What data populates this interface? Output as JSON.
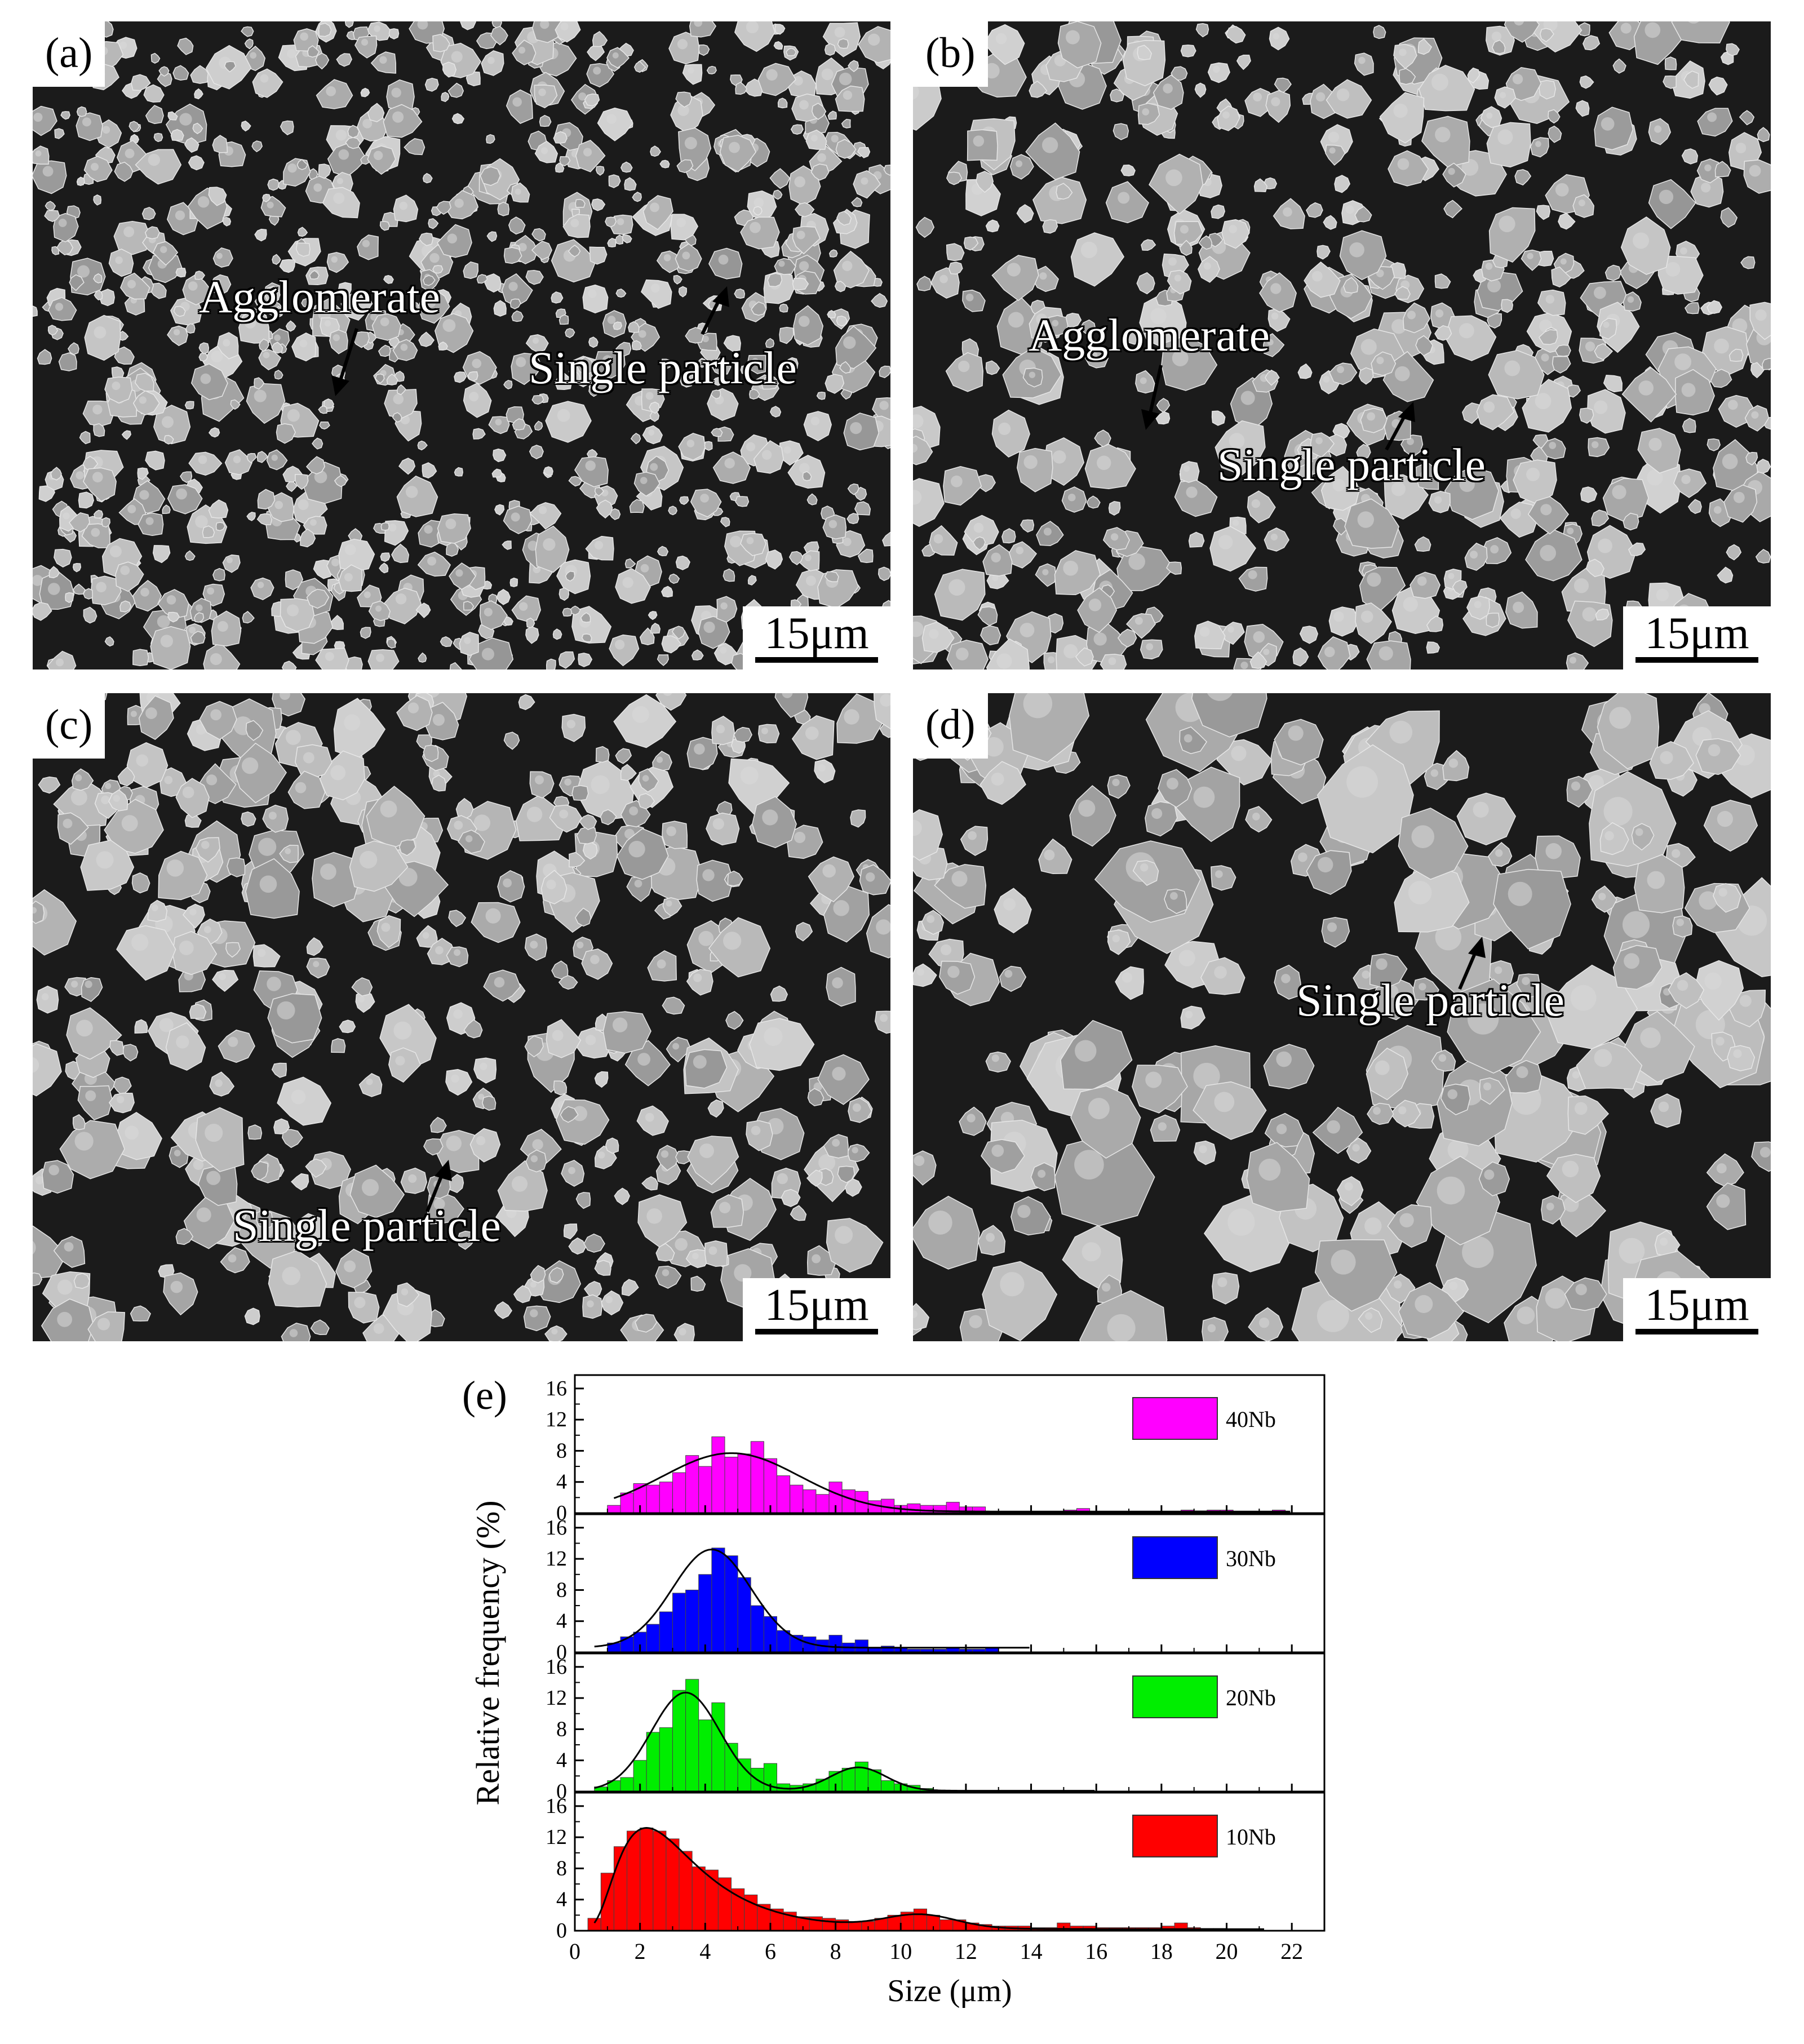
{
  "panels": [
    {
      "label": "(a)",
      "scale": "15μm",
      "annotations": [
        "Agglomerate",
        "Single particle"
      ]
    },
    {
      "label": "(b)",
      "scale": "15μm",
      "annotations": [
        "Agglomerate",
        "Single particle"
      ]
    },
    {
      "label": "(c)",
      "scale": "15μm",
      "annotations": [
        "Single particle"
      ]
    },
    {
      "label": "(d)",
      "scale": "15μm",
      "annotations": [
        "Single particle"
      ]
    }
  ],
  "chart_data": {
    "label": "(e)",
    "type": "bar",
    "xlabel": "Size (μm)",
    "ylabel": "Relative frequency (%)",
    "xlim": [
      0,
      23
    ],
    "ylim": [
      0,
      17
    ],
    "x_ticks": [
      0,
      2,
      4,
      6,
      8,
      10,
      12,
      14,
      16,
      18,
      20,
      22
    ],
    "y_ticks": [
      0,
      4,
      8,
      12,
      16
    ],
    "y_minor_ticks": [
      2,
      6,
      10,
      14
    ],
    "bin_width": 0.4,
    "colors": {
      "40Nb": "#ff00ff",
      "30Nb": "#0000ff",
      "20Nb": "#00ee00",
      "10Nb": "#ff0000"
    },
    "series": [
      {
        "name": "40Nb",
        "x": [
          1.2,
          1.6,
          2.0,
          2.4,
          2.8,
          3.2,
          3.6,
          4.0,
          4.4,
          4.8,
          5.2,
          5.6,
          6.0,
          6.4,
          6.8,
          7.2,
          7.6,
          8.0,
          8.4,
          8.8,
          9.2,
          9.6,
          10.0,
          10.4,
          10.8,
          11.2,
          11.6,
          12.0,
          12.4,
          15.2,
          15.6,
          18.8,
          19.2,
          19.6,
          20.0,
          21.6
        ],
        "y": [
          1.0,
          2.6,
          3.8,
          3.6,
          4.0,
          5.2,
          7.4,
          6.0,
          9.8,
          7.2,
          7.6,
          9.2,
          7.0,
          4.8,
          3.6,
          3.0,
          2.4,
          4.0,
          3.0,
          2.8,
          1.6,
          1.8,
          1.0,
          1.2,
          1.0,
          1.0,
          1.4,
          0.8,
          0.8,
          0.4,
          0.6,
          0.4,
          0.3,
          0.4,
          0.4,
          0.4
        ],
        "fit": {
          "type": "gaussian",
          "center": 4.8,
          "sigma": 2.1,
          "peak": 7.5,
          "baseline": 0.2,
          "range": [
            1.2,
            22.0
          ]
        }
      },
      {
        "name": "30Nb",
        "x": [
          1.2,
          1.6,
          2.0,
          2.4,
          2.8,
          3.2,
          3.6,
          4.0,
          4.4,
          4.8,
          5.2,
          5.6,
          6.0,
          6.4,
          6.8,
          7.2,
          7.6,
          8.0,
          8.4,
          8.8,
          9.2,
          9.6,
          10.0,
          10.4,
          10.8,
          11.2,
          11.6,
          12.0,
          12.4,
          12.8
        ],
        "y": [
          1.2,
          2.0,
          2.6,
          3.6,
          5.2,
          7.6,
          8.0,
          10.0,
          13.4,
          12.4,
          9.6,
          6.0,
          4.6,
          2.8,
          2.2,
          2.0,
          1.6,
          2.2,
          1.2,
          1.6,
          0.6,
          0.8,
          0.6,
          0.4,
          0.4,
          0.4,
          0.6,
          0.4,
          0.4,
          0.6
        ],
        "fit": {
          "type": "gaussian",
          "center": 4.2,
          "sigma": 1.2,
          "peak": 12.6,
          "baseline": 0.6,
          "range": [
            0.6,
            14.0
          ]
        }
      },
      {
        "name": "20Nb",
        "x": [
          0.8,
          1.2,
          1.6,
          2.0,
          2.4,
          2.8,
          3.2,
          3.6,
          4.0,
          4.4,
          4.8,
          5.2,
          5.6,
          6.0,
          6.4,
          6.8,
          7.2,
          7.6,
          8.0,
          8.4,
          8.8,
          9.2,
          9.6,
          10.0,
          10.4,
          10.8
        ],
        "y": [
          0.6,
          1.4,
          1.8,
          4.0,
          7.6,
          8.2,
          13.0,
          14.4,
          9.2,
          11.4,
          6.2,
          4.2,
          3.0,
          3.6,
          1.0,
          0.8,
          1.0,
          1.6,
          2.6,
          3.0,
          3.8,
          2.8,
          1.4,
          1.0,
          0.8,
          0.4
        ],
        "fit": {
          "type": "bimodal",
          "center": 3.4,
          "sigma": 1.05,
          "peak": 12.6,
          "center2": 8.7,
          "sigma2": 0.85,
          "peak2": 3.0,
          "baseline": 0.1,
          "range": [
            0.6,
            16.0
          ]
        }
      },
      {
        "name": "10Nb",
        "x": [
          0.6,
          1.0,
          1.4,
          1.8,
          2.2,
          2.6,
          3.0,
          3.4,
          3.8,
          4.2,
          4.6,
          5.0,
          5.4,
          5.8,
          6.2,
          6.6,
          7.0,
          7.4,
          7.8,
          8.2,
          8.6,
          9.0,
          9.4,
          9.8,
          10.2,
          10.6,
          11.0,
          11.4,
          11.8,
          12.2,
          12.6,
          13.0,
          13.4,
          13.8,
          14.2,
          14.6,
          15.0,
          15.4,
          15.8,
          16.2,
          16.6,
          17.0,
          17.4,
          17.8,
          18.2,
          18.6,
          19.0,
          19.4,
          19.8
        ],
        "y": [
          1.6,
          7.4,
          10.8,
          12.8,
          13.2,
          12.8,
          11.8,
          10.2,
          8.2,
          7.8,
          6.8,
          5.4,
          4.6,
          3.4,
          2.8,
          2.4,
          1.8,
          1.8,
          1.6,
          1.4,
          1.2,
          1.2,
          1.6,
          2.0,
          2.4,
          2.8,
          2.0,
          1.4,
          1.4,
          1.0,
          0.8,
          0.6,
          0.6,
          0.6,
          0.4,
          0.4,
          1.0,
          0.6,
          0.6,
          0.4,
          0.4,
          0.4,
          0.4,
          0.4,
          0.6,
          1.0,
          0.4,
          0.3,
          0.3
        ],
        "fit": {
          "type": "lognormal_bimodal",
          "center": 2.2,
          "peak": 13.0,
          "center2": 10.6,
          "sigma2": 1.1,
          "peak2": 1.7,
          "baseline": 0.2,
          "range": [
            0.6,
            21.2
          ]
        }
      }
    ]
  }
}
